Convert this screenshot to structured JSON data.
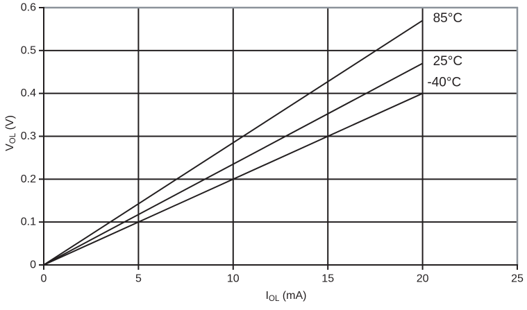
{
  "chart_data": {
    "type": "line",
    "title": "",
    "xlabel": {
      "pre": "I",
      "sub": "OL",
      "post": " (mA)"
    },
    "ylabel": {
      "pre": "V",
      "sub": "OL",
      "post": " (V)"
    },
    "xlim": [
      0,
      25
    ],
    "ylim": [
      0,
      0.6
    ],
    "x_ticks": [
      0,
      5,
      10,
      15,
      20,
      25
    ],
    "x_tick_labels": [
      "0",
      "5",
      "10",
      "15",
      "20",
      "25"
    ],
    "y_ticks": [
      0,
      0.1,
      0.2,
      0.3,
      0.4,
      0.5,
      0.6
    ],
    "y_tick_labels": [
      "0",
      "0.1",
      "0.2",
      "0.3",
      "0.4",
      "0.5",
      "0.6"
    ],
    "grid": true,
    "legend_position": "inline-right",
    "series": [
      {
        "name": "85°C",
        "x": [
          0,
          20
        ],
        "y": [
          0,
          0.57
        ]
      },
      {
        "name": "25°C",
        "x": [
          0,
          20
        ],
        "y": [
          0,
          0.47
        ]
      },
      {
        "name": "-40°C",
        "x": [
          0,
          20
        ],
        "y": [
          0,
          0.4
        ]
      }
    ],
    "annotations": [
      {
        "text": "85°C",
        "x": 20.55,
        "y": 0.575
      },
      {
        "text": "25°C",
        "x": 20.55,
        "y": 0.475
      },
      {
        "text": "-40°C",
        "x": 20.25,
        "y": 0.425
      }
    ],
    "colors": {
      "background": "#ffffff",
      "axis": "#231f20",
      "grid": "#231f20",
      "border": "#8b929a",
      "line": "#231f20",
      "text": "#231f20"
    },
    "font_sizes": {
      "tick": 16,
      "annotation": 19
    }
  }
}
